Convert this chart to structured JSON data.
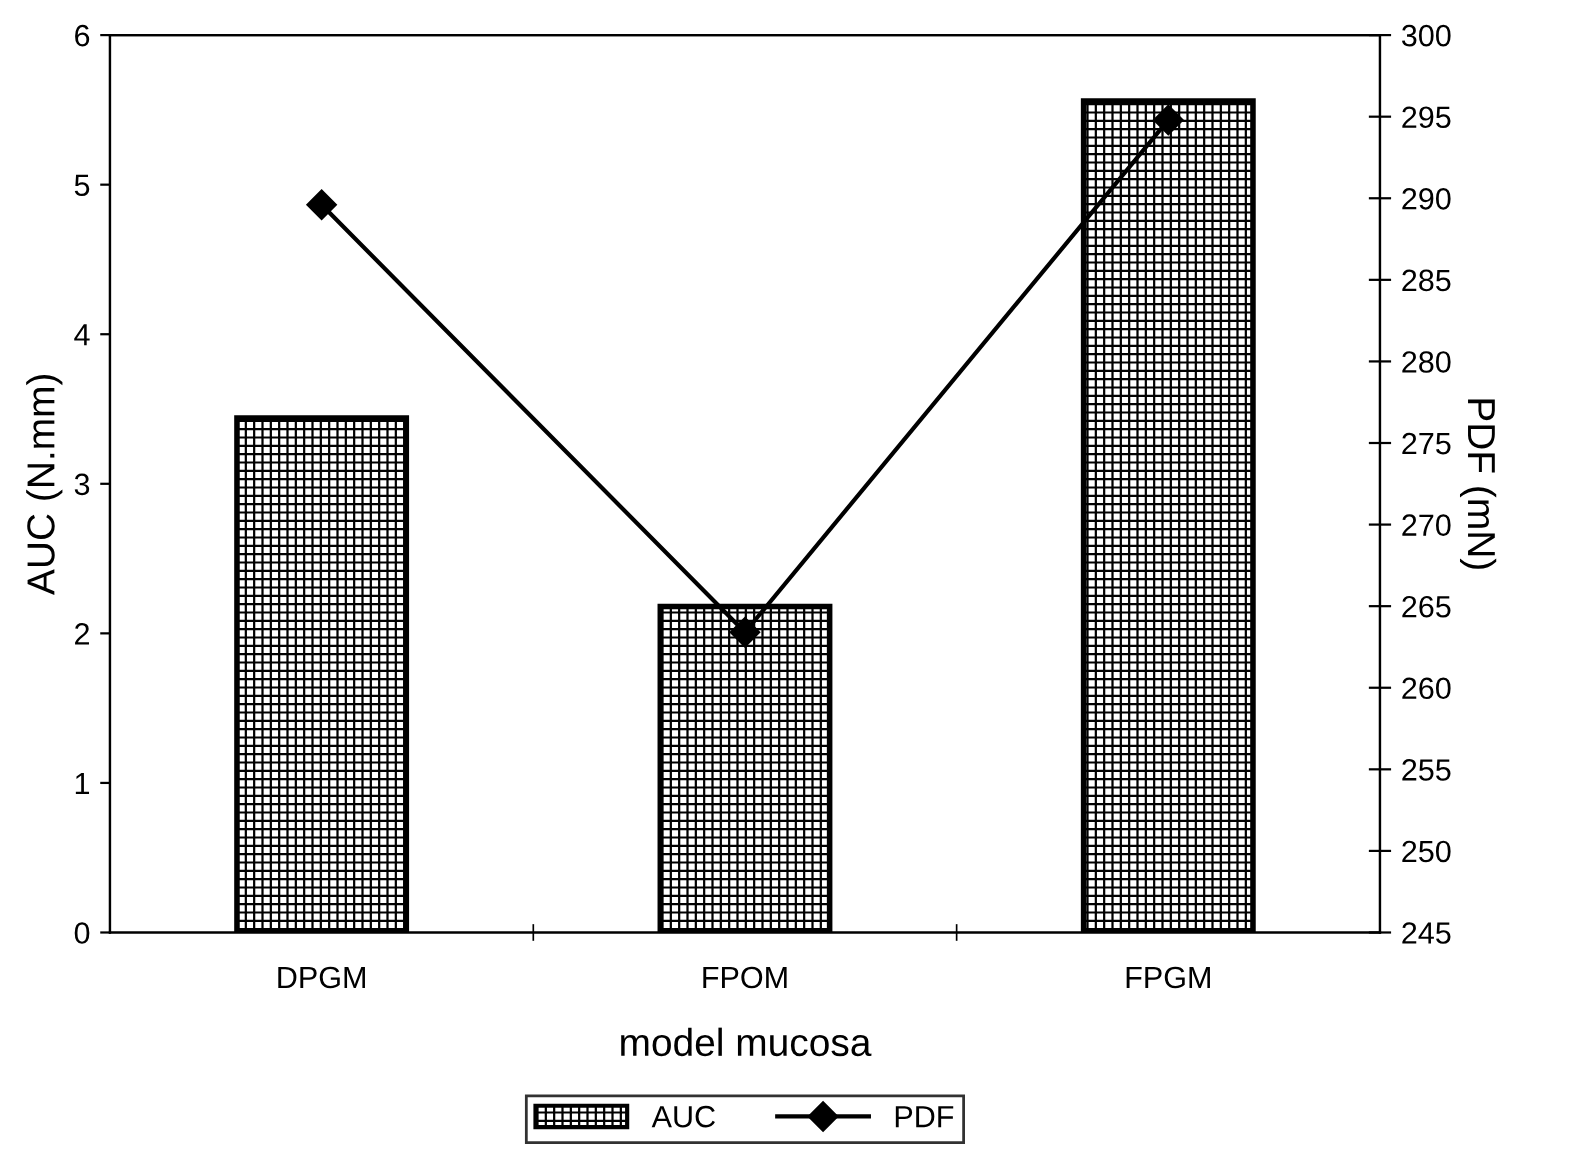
{
  "chart_data": {
    "type": "bar",
    "xlabel": "model mucosa",
    "ylabel": "AUC (N.mm)",
    "y2label": "PDF (mN)",
    "categories": [
      "DPGM",
      "FPOM",
      "FPGM"
    ],
    "series": [
      {
        "name": "AUC",
        "color": "#000000",
        "values": [
          3.44,
          2.18,
          5.56
        ]
      },
      {
        "name": "PDF",
        "type": "line",
        "axis": "y2",
        "color": "#000000",
        "marker": "diamond",
        "line_style": "solid",
        "values": [
          289.6,
          263.4,
          294.8
        ]
      }
    ],
    "ylim": [
      0,
      6
    ],
    "yticks": [
      0,
      1,
      2,
      3,
      4,
      5,
      6
    ],
    "y2lim": [
      245,
      300
    ],
    "y2ticks": [
      245,
      250,
      255,
      260,
      265,
      270,
      275,
      280,
      285,
      290,
      295,
      300
    ],
    "grid": false,
    "legend": "bottom"
  }
}
